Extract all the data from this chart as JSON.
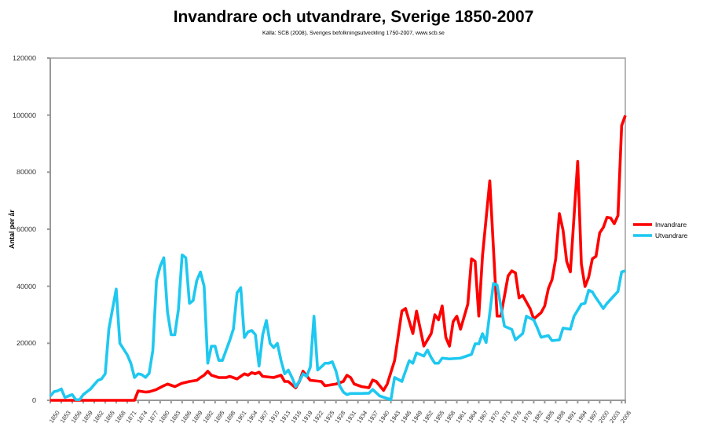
{
  "chart_data": {
    "type": "line",
    "title": "Invandrare och utvandrare, Sverige 1850-2007",
    "subtitle": "Källa: SCB (2008), Sveriges befolkningsutveckling 1750-2007, www.scb.se",
    "ylabel": "Antal per år",
    "xlim": [
      1850,
      2007
    ],
    "xticks": [
      1850,
      1853,
      1856,
      1859,
      1862,
      1865,
      1868,
      1871,
      1874,
      1877,
      1880,
      1883,
      1886,
      1889,
      1892,
      1895,
      1898,
      1901,
      1904,
      1907,
      1910,
      1913,
      1916,
      1919,
      1922,
      1925,
      1928,
      1931,
      1934,
      1937,
      1940,
      1943,
      1946,
      1949,
      1952,
      1955,
      1958,
      1961,
      1964,
      1967,
      1970,
      1973,
      1976,
      1979,
      1982,
      1985,
      1988,
      1991,
      1994,
      1997,
      2000,
      2003,
      2006
    ],
    "ylim": [
      0,
      120000
    ],
    "yticks": [
      0,
      20000,
      40000,
      60000,
      80000,
      100000,
      120000
    ],
    "grid": false,
    "legend": "right",
    "marker": "none",
    "line_style": "solid",
    "series": [
      {
        "name": "Invandrare",
        "color": "#ff0000",
        "x": [
          1850,
          1873,
          1874,
          1876,
          1877,
          1879,
          1881,
          1882,
          1884,
          1886,
          1888,
          1890,
          1891,
          1892,
          1893,
          1894,
          1896,
          1898,
          1899,
          1901,
          1903,
          1904,
          1905,
          1906,
          1907,
          1908,
          1911,
          1913,
          1914,
          1915,
          1917,
          1918,
          1919,
          1921,
          1924,
          1925,
          1928,
          1930,
          1931,
          1932,
          1933,
          1935,
          1937,
          1938,
          1939,
          1941,
          1942,
          1944,
          1946,
          1947,
          1949,
          1950,
          1952,
          1954,
          1955,
          1956,
          1957,
          1958,
          1959,
          1960,
          1961,
          1962,
          1964,
          1965,
          1966,
          1967,
          1968,
          1970,
          1972,
          1973,
          1975,
          1976,
          1977,
          1978,
          1979,
          1981,
          1982,
          1984,
          1985,
          1986,
          1987,
          1988,
          1989,
          1990,
          1991,
          1992,
          1994,
          1995,
          1996,
          1997,
          1998,
          1999,
          2000,
          2001,
          2002,
          2003,
          2004,
          2005,
          2006,
          2007
        ],
        "values": [
          0,
          0,
          3300,
          2900,
          3000,
          3800,
          5100,
          5700,
          4800,
          6000,
          6600,
          7000,
          8000,
          8800,
          10200,
          8800,
          8000,
          8000,
          8400,
          7500,
          9300,
          8800,
          9700,
          9300,
          9900,
          8400,
          8000,
          8800,
          6600,
          6600,
          4400,
          6600,
          10200,
          7000,
          6600,
          5100,
          5700,
          6600,
          8800,
          8000,
          5700,
          4800,
          4400,
          7100,
          6600,
          3500,
          5700,
          13900,
          31300,
          32200,
          23400,
          31300,
          19000,
          23400,
          30000,
          28200,
          33100,
          22100,
          19000,
          27600,
          29500,
          24900,
          33700,
          49600,
          48700,
          29500,
          50500,
          77000,
          29500,
          29500,
          43600,
          45400,
          44700,
          35900,
          36800,
          32200,
          28500,
          30700,
          33100,
          39200,
          42300,
          49600,
          65500,
          59700,
          48700,
          45000,
          83800,
          47800,
          39900,
          43200,
          49600,
          50500,
          58700,
          60600,
          64200,
          63900,
          61900,
          64800,
          96300,
          99900
        ]
      },
      {
        "name": "Utvandrare",
        "color": "#1ec8f0",
        "x": [
          1850,
          1851,
          1852,
          1853,
          1854,
          1855,
          1856,
          1857,
          1858,
          1859,
          1860,
          1861,
          1862,
          1863,
          1864,
          1865,
          1866,
          1868,
          1869,
          1870,
          1871,
          1872,
          1873,
          1874,
          1875,
          1876,
          1877,
          1878,
          1879,
          1880,
          1881,
          1882,
          1883,
          1884,
          1885,
          1886,
          1887,
          1888,
          1889,
          1890,
          1891,
          1892,
          1893,
          1894,
          1895,
          1896,
          1897,
          1898,
          1899,
          1900,
          1901,
          1902,
          1903,
          1904,
          1905,
          1906,
          1907,
          1908,
          1909,
          1910,
          1911,
          1912,
          1913,
          1914,
          1915,
          1916,
          1917,
          1918,
          1919,
          1920,
          1921,
          1922,
          1923,
          1924,
          1925,
          1926,
          1927,
          1928,
          1929,
          1930,
          1931,
          1932,
          1935,
          1937,
          1938,
          1940,
          1943,
          1944,
          1946,
          1948,
          1949,
          1950,
          1952,
          1953,
          1954,
          1955,
          1956,
          1957,
          1959,
          1962,
          1965,
          1966,
          1967,
          1968,
          1969,
          1971,
          1972,
          1974,
          1976,
          1977,
          1979,
          1980,
          1982,
          1983,
          1984,
          1986,
          1987,
          1989,
          1990,
          1992,
          1993,
          1995,
          1996,
          1997,
          1998,
          1999,
          2001,
          2002,
          2005,
          2006,
          2007
        ],
        "values": [
          1500,
          3000,
          3300,
          4000,
          1000,
          1500,
          2000,
          200,
          200,
          2000,
          3000,
          4000,
          5500,
          7000,
          7500,
          9300,
          25000,
          39000,
          20000,
          18000,
          16000,
          13000,
          8000,
          9300,
          9000,
          8000,
          9500,
          17500,
          42000,
          47000,
          50000,
          31000,
          23000,
          23000,
          32000,
          51000,
          50000,
          34000,
          35000,
          42000,
          45000,
          40000,
          13000,
          19000,
          19000,
          14000,
          14000,
          17500,
          21000,
          25000,
          37700,
          39500,
          22000,
          24000,
          24500,
          23000,
          12000,
          23000,
          28000,
          20000,
          18500,
          20000,
          14000,
          9300,
          10600,
          8000,
          4800,
          6600,
          9300,
          8400,
          11700,
          29500,
          10600,
          11700,
          13000,
          13000,
          13500,
          10300,
          5100,
          2900,
          2000,
          2400,
          2400,
          2500,
          3800,
          1500,
          200,
          8000,
          6600,
          13900,
          13000,
          16600,
          15500,
          17600,
          15000,
          13000,
          13000,
          14800,
          14500,
          14800,
          16100,
          19800,
          19800,
          23400,
          20300,
          41000,
          40400,
          26000,
          24900,
          21200,
          23400,
          29500,
          28200,
          25300,
          22100,
          22700,
          20900,
          21200,
          25300,
          24900,
          29500,
          33700,
          34000,
          38600,
          38000,
          35900,
          32200,
          34000,
          38200,
          45000,
          45400
        ]
      }
    ]
  }
}
